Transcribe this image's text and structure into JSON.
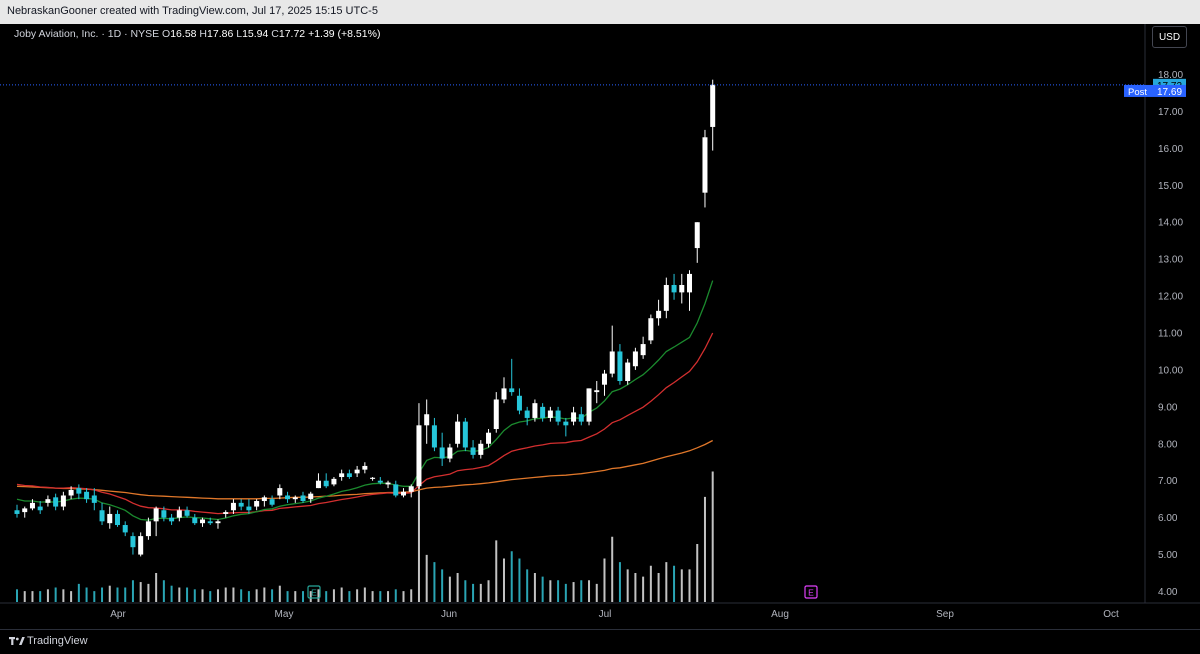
{
  "header": {
    "attribution": "NebraskanGooner created with TradingView.com, Jul 17, 2025 15:15 UTC-5"
  },
  "legend": {
    "symbol": "Joby Aviation, Inc. · 1D · NYSE",
    "o_label": "O",
    "o": "16.58",
    "h_label": "H",
    "h": "17.86",
    "l_label": "L",
    "l": "15.94",
    "c_label": "C",
    "c": "17.72",
    "change": "+1.39 (+8.51%)"
  },
  "currency_button": "USD",
  "price_tags": {
    "last": "17.72",
    "post_label": "Post",
    "post": "17.69"
  },
  "earnings_markers": [
    {
      "label": "E",
      "date": "May 7",
      "color": "#26a69a"
    },
    {
      "label": "E",
      "date": "Aug 6",
      "color": "#e040fb"
    }
  ],
  "footer": {
    "brand": "TradingView"
  },
  "colors": {
    "up": "#ffffff",
    "down": "#26c6da",
    "ema_short": "#1b8a2e",
    "ema_mid": "#d32f2f",
    "ema_long": "#e0772a",
    "price_line": "#2962ff",
    "post_tag": "#2962ff"
  },
  "chart_data": {
    "type": "candlestick",
    "y_ticks": [
      "18.00",
      "17.00",
      "16.00",
      "15.00",
      "14.00",
      "13.00",
      "12.00",
      "11.00",
      "10.00",
      "9.00",
      "8.00",
      "7.00",
      "6.00",
      "5.00",
      "4.00"
    ],
    "x_ticks": [
      "Apr",
      "May",
      "Jun",
      "Jul",
      "Aug",
      "Sep",
      "Oct"
    ],
    "ylim": [
      3.7,
      18.3
    ],
    "scale": "linear",
    "candles": [
      {
        "d": "Mar 24",
        "o": 6.2,
        "h": 6.35,
        "l": 6.0,
        "c": 6.1,
        "v": 0.35
      },
      {
        "d": "Mar 25",
        "o": 6.15,
        "h": 6.3,
        "l": 6.0,
        "c": 6.25,
        "v": 0.3
      },
      {
        "d": "Mar 26",
        "o": 6.25,
        "h": 6.5,
        "l": 6.2,
        "c": 6.4,
        "v": 0.3
      },
      {
        "d": "Mar 27",
        "o": 6.3,
        "h": 6.45,
        "l": 6.1,
        "c": 6.2,
        "v": 0.3
      },
      {
        "d": "Mar 28",
        "o": 6.4,
        "h": 6.6,
        "l": 6.3,
        "c": 6.5,
        "v": 0.35
      },
      {
        "d": "Mar 31",
        "o": 6.55,
        "h": 6.65,
        "l": 6.2,
        "c": 6.3,
        "v": 0.4
      },
      {
        "d": "Apr 1",
        "o": 6.3,
        "h": 6.7,
        "l": 6.2,
        "c": 6.6,
        "v": 0.35
      },
      {
        "d": "Apr 2",
        "o": 6.6,
        "h": 6.85,
        "l": 6.5,
        "c": 6.75,
        "v": 0.3
      },
      {
        "d": "Apr 3",
        "o": 6.8,
        "h": 6.9,
        "l": 6.5,
        "c": 6.65,
        "v": 0.5
      },
      {
        "d": "Apr 4",
        "o": 6.7,
        "h": 6.8,
        "l": 6.4,
        "c": 6.5,
        "v": 0.4
      },
      {
        "d": "Apr 7",
        "o": 6.6,
        "h": 6.8,
        "l": 6.2,
        "c": 6.4,
        "v": 0.3
      },
      {
        "d": "Apr 8",
        "o": 6.2,
        "h": 6.4,
        "l": 5.8,
        "c": 5.9,
        "v": 0.4
      },
      {
        "d": "Apr 9",
        "o": 5.85,
        "h": 6.3,
        "l": 5.7,
        "c": 6.1,
        "v": 0.45
      },
      {
        "d": "Apr 10",
        "o": 6.1,
        "h": 6.2,
        "l": 5.75,
        "c": 5.8,
        "v": 0.4
      },
      {
        "d": "Apr 11",
        "o": 5.8,
        "h": 5.9,
        "l": 5.5,
        "c": 5.6,
        "v": 0.4
      },
      {
        "d": "Apr 14",
        "o": 5.5,
        "h": 5.6,
        "l": 5.0,
        "c": 5.2,
        "v": 0.6
      },
      {
        "d": "Apr 15",
        "o": 5.0,
        "h": 5.6,
        "l": 4.95,
        "c": 5.5,
        "v": 0.55
      },
      {
        "d": "Apr 16",
        "o": 5.5,
        "h": 6.0,
        "l": 5.4,
        "c": 5.9,
        "v": 0.5
      },
      {
        "d": "Apr 17",
        "o": 5.9,
        "h": 6.3,
        "l": 5.5,
        "c": 6.25,
        "v": 0.8
      },
      {
        "d": "Apr 21",
        "o": 6.2,
        "h": 6.3,
        "l": 5.9,
        "c": 6.0,
        "v": 0.6
      },
      {
        "d": "Apr 22",
        "o": 6.0,
        "h": 6.1,
        "l": 5.8,
        "c": 5.9,
        "v": 0.45
      },
      {
        "d": "Apr 23",
        "o": 6.0,
        "h": 6.3,
        "l": 5.9,
        "c": 6.2,
        "v": 0.4
      },
      {
        "d": "Apr 24",
        "o": 6.2,
        "h": 6.3,
        "l": 6.0,
        "c": 6.05,
        "v": 0.4
      },
      {
        "d": "Apr 25",
        "o": 6.0,
        "h": 6.1,
        "l": 5.8,
        "c": 5.85,
        "v": 0.35
      },
      {
        "d": "Apr 28",
        "o": 5.85,
        "h": 6.0,
        "l": 5.75,
        "c": 5.95,
        "v": 0.35
      },
      {
        "d": "Apr 29",
        "o": 5.9,
        "h": 6.0,
        "l": 5.8,
        "c": 5.85,
        "v": 0.3
      },
      {
        "d": "Apr 30",
        "o": 5.85,
        "h": 5.95,
        "l": 5.7,
        "c": 5.9,
        "v": 0.35
      },
      {
        "d": "May 1",
        "o": 6.1,
        "h": 6.2,
        "l": 6.0,
        "c": 6.15,
        "v": 0.4
      },
      {
        "d": "May 2",
        "o": 6.2,
        "h": 6.5,
        "l": 6.1,
        "c": 6.4,
        "v": 0.4
      },
      {
        "d": "May 5",
        "o": 6.4,
        "h": 6.5,
        "l": 6.2,
        "c": 6.3,
        "v": 0.35
      },
      {
        "d": "May 6",
        "o": 6.3,
        "h": 6.5,
        "l": 6.1,
        "c": 6.2,
        "v": 0.3
      },
      {
        "d": "May 7",
        "o": 6.3,
        "h": 6.5,
        "l": 6.2,
        "c": 6.45,
        "v": 0.35
      },
      {
        "d": "May 8",
        "o": 6.45,
        "h": 6.6,
        "l": 6.3,
        "c": 6.55,
        "v": 0.4
      },
      {
        "d": "May 9",
        "o": 6.5,
        "h": 6.6,
        "l": 6.3,
        "c": 6.35,
        "v": 0.35
      },
      {
        "d": "May 12",
        "o": 6.6,
        "h": 6.9,
        "l": 6.5,
        "c": 6.8,
        "v": 0.45
      },
      {
        "d": "May 13",
        "o": 6.6,
        "h": 6.7,
        "l": 6.4,
        "c": 6.5,
        "v": 0.3
      },
      {
        "d": "May 14",
        "o": 6.5,
        "h": 6.6,
        "l": 6.4,
        "c": 6.55,
        "v": 0.3
      },
      {
        "d": "May 15",
        "o": 6.6,
        "h": 6.7,
        "l": 6.4,
        "c": 6.45,
        "v": 0.3
      },
      {
        "d": "May 16",
        "o": 6.5,
        "h": 6.7,
        "l": 6.4,
        "c": 6.65,
        "v": 0.3
      },
      {
        "d": "May 19",
        "o": 6.8,
        "h": 7.2,
        "l": 6.8,
        "c": 7.0,
        "v": 0.35
      },
      {
        "d": "May 20",
        "o": 7.0,
        "h": 7.2,
        "l": 6.8,
        "c": 6.85,
        "v": 0.3
      },
      {
        "d": "May 21",
        "o": 6.9,
        "h": 7.1,
        "l": 6.85,
        "c": 7.05,
        "v": 0.35
      },
      {
        "d": "May 22",
        "o": 7.1,
        "h": 7.3,
        "l": 7.0,
        "c": 7.2,
        "v": 0.4
      },
      {
        "d": "May 23",
        "o": 7.2,
        "h": 7.3,
        "l": 7.05,
        "c": 7.1,
        "v": 0.3
      },
      {
        "d": "May 27",
        "o": 7.2,
        "h": 7.4,
        "l": 7.1,
        "c": 7.3,
        "v": 0.35
      },
      {
        "d": "May 28",
        "o": 7.3,
        "h": 7.5,
        "l": 7.2,
        "c": 7.4,
        "v": 0.4
      },
      {
        "d": "May 29",
        "o": 7.05,
        "h": 7.1,
        "l": 7.0,
        "c": 7.08,
        "v": 0.3
      },
      {
        "d": "May 30",
        "o": 7.0,
        "h": 7.1,
        "l": 6.9,
        "c": 6.95,
        "v": 0.3
      },
      {
        "d": "Jun 2",
        "o": 6.9,
        "h": 7.0,
        "l": 6.8,
        "c": 6.95,
        "v": 0.3
      },
      {
        "d": "Jun 3",
        "o": 6.9,
        "h": 7.0,
        "l": 6.55,
        "c": 6.6,
        "v": 0.35
      },
      {
        "d": "Jun 4",
        "o": 6.6,
        "h": 6.8,
        "l": 6.55,
        "c": 6.7,
        "v": 0.3
      },
      {
        "d": "Jun 5",
        "o": 6.7,
        "h": 6.9,
        "l": 6.55,
        "c": 6.85,
        "v": 0.35
      },
      {
        "d": "Jun 6",
        "o": 6.85,
        "h": 9.1,
        "l": 6.8,
        "c": 8.5,
        "v": 3.2
      },
      {
        "d": "Jun 9",
        "o": 8.5,
        "h": 9.2,
        "l": 8.0,
        "c": 8.8,
        "v": 1.3
      },
      {
        "d": "Jun 10",
        "o": 8.5,
        "h": 8.7,
        "l": 7.8,
        "c": 7.9,
        "v": 1.1
      },
      {
        "d": "Jun 11",
        "o": 7.9,
        "h": 8.3,
        "l": 7.4,
        "c": 7.6,
        "v": 0.9
      },
      {
        "d": "Jun 12",
        "o": 7.6,
        "h": 8.0,
        "l": 7.5,
        "c": 7.9,
        "v": 0.7
      },
      {
        "d": "Jun 13",
        "o": 8.0,
        "h": 8.8,
        "l": 7.9,
        "c": 8.6,
        "v": 0.8
      },
      {
        "d": "Jun 16",
        "o": 8.6,
        "h": 8.7,
        "l": 7.8,
        "c": 7.9,
        "v": 0.6
      },
      {
        "d": "Jun 17",
        "o": 7.9,
        "h": 8.1,
        "l": 7.6,
        "c": 7.7,
        "v": 0.5
      },
      {
        "d": "Jun 18",
        "o": 7.7,
        "h": 8.1,
        "l": 7.6,
        "c": 8.0,
        "v": 0.5
      },
      {
        "d": "Jun 19",
        "o": 8.0,
        "h": 8.4,
        "l": 7.9,
        "c": 8.3,
        "v": 0.6
      },
      {
        "d": "Jun 20",
        "o": 8.4,
        "h": 9.4,
        "l": 8.3,
        "c": 9.2,
        "v": 1.7
      },
      {
        "d": "Jun 23",
        "o": 9.2,
        "h": 9.8,
        "l": 9.1,
        "c": 9.5,
        "v": 1.2
      },
      {
        "d": "Jun 24",
        "o": 9.5,
        "h": 10.3,
        "l": 9.3,
        "c": 9.4,
        "v": 1.4
      },
      {
        "d": "Jun 25",
        "o": 9.3,
        "h": 9.5,
        "l": 8.8,
        "c": 8.9,
        "v": 1.2
      },
      {
        "d": "Jun 26",
        "o": 8.9,
        "h": 9.0,
        "l": 8.5,
        "c": 8.7,
        "v": 0.9
      },
      {
        "d": "Jun 27",
        "o": 8.7,
        "h": 9.2,
        "l": 8.6,
        "c": 9.1,
        "v": 0.8
      },
      {
        "d": "Jun 30",
        "o": 9.0,
        "h": 9.1,
        "l": 8.6,
        "c": 8.7,
        "v": 0.7
      },
      {
        "d": "Jul 1",
        "o": 8.7,
        "h": 9.0,
        "l": 8.6,
        "c": 8.9,
        "v": 0.6
      },
      {
        "d": "Jul 2",
        "o": 8.9,
        "h": 9.0,
        "l": 8.5,
        "c": 8.6,
        "v": 0.6
      },
      {
        "d": "Jul 3",
        "o": 8.6,
        "h": 8.7,
        "l": 8.2,
        "c": 8.5,
        "v": 0.5
      },
      {
        "d": "Jul 7",
        "o": 8.6,
        "h": 9.0,
        "l": 8.5,
        "c": 8.85,
        "v": 0.55
      },
      {
        "d": "Jul 8",
        "o": 8.8,
        "h": 9.0,
        "l": 8.5,
        "c": 8.6,
        "v": 0.6
      },
      {
        "d": "Jul 9",
        "o": 8.6,
        "h": 9.5,
        "l": 8.5,
        "c": 9.5,
        "v": 0.6
      },
      {
        "d": "Jul 10",
        "o": 9.4,
        "h": 9.7,
        "l": 9.1,
        "c": 9.45,
        "v": 0.5
      },
      {
        "d": "Jul 11",
        "o": 9.6,
        "h": 10.0,
        "l": 9.3,
        "c": 9.9,
        "v": 1.2
      },
      {
        "d": "Jul 14",
        "o": 9.9,
        "h": 11.2,
        "l": 9.8,
        "c": 10.5,
        "v": 1.8
      },
      {
        "d": "Jul 15",
        "o": 10.5,
        "h": 10.7,
        "l": 9.6,
        "c": 9.7,
        "v": 1.1
      },
      {
        "d": "Jul 16",
        "o": 9.7,
        "h": 10.3,
        "l": 9.6,
        "c": 10.2,
        "v": 0.9
      },
      {
        "d": "Jul 17",
        "o": 10.1,
        "h": 10.6,
        "l": 10.0,
        "c": 10.5,
        "v": 0.8
      },
      {
        "d": "Jul 18",
        "o": 10.4,
        "h": 10.9,
        "l": 10.3,
        "c": 10.7,
        "v": 0.7
      },
      {
        "d": "Jul 21",
        "o": 10.8,
        "h": 11.5,
        "l": 10.7,
        "c": 11.4,
        "v": 1.0
      },
      {
        "d": "Jul 22",
        "o": 11.4,
        "h": 11.9,
        "l": 11.2,
        "c": 11.6,
        "v": 0.8
      },
      {
        "d": "Jul 23",
        "o": 11.6,
        "h": 12.5,
        "l": 11.4,
        "c": 12.3,
        "v": 1.1
      },
      {
        "d": "Jul 24",
        "o": 12.3,
        "h": 12.6,
        "l": 11.9,
        "c": 12.1,
        "v": 1.0
      },
      {
        "d": "Jul 25",
        "o": 12.1,
        "h": 12.6,
        "l": 11.8,
        "c": 12.3,
        "v": 0.9
      },
      {
        "d": "Jul 28",
        "o": 12.1,
        "h": 12.7,
        "l": 11.6,
        "c": 12.6,
        "v": 0.9
      },
      {
        "d": "Jul 29",
        "o": 13.3,
        "h": 14.0,
        "l": 12.9,
        "c": 14.0,
        "v": 1.6
      },
      {
        "d": "Jul 30",
        "o": 14.8,
        "h": 16.5,
        "l": 14.4,
        "c": 16.3,
        "v": 2.9
      },
      {
        "d": "Jul 31",
        "o": 16.58,
        "h": 17.86,
        "l": 15.94,
        "c": 17.72,
        "v": 3.6
      }
    ],
    "volume_scale_max": 4.0,
    "ema_short": [
      6.5,
      6.45,
      6.45,
      6.42,
      6.43,
      6.42,
      6.45,
      6.5,
      6.53,
      6.52,
      6.5,
      6.4,
      6.35,
      6.28,
      6.2,
      6.05,
      5.95,
      5.93,
      5.98,
      5.98,
      5.97,
      6.0,
      6.02,
      6.0,
      5.99,
      5.97,
      5.95,
      5.99,
      6.05,
      6.09,
      6.11,
      6.16,
      6.22,
      6.24,
      6.31,
      6.35,
      6.38,
      6.41,
      6.45,
      6.53,
      6.58,
      6.64,
      6.71,
      6.75,
      6.81,
      6.88,
      6.92,
      6.93,
      6.93,
      6.88,
      6.85,
      6.85,
      7.22,
      7.55,
      7.63,
      7.62,
      7.65,
      7.8,
      7.82,
      7.79,
      7.82,
      7.9,
      8.12,
      8.36,
      8.52,
      8.59,
      8.62,
      8.68,
      8.69,
      8.73,
      8.71,
      8.67,
      8.7,
      8.69,
      8.85,
      8.97,
      9.16,
      9.41,
      9.48,
      9.6,
      9.74,
      9.87,
      10.06,
      10.27,
      10.5,
      10.62,
      10.75,
      10.88,
      11.27,
      11.8,
      12.42
    ],
    "ema_mid": [
      6.9,
      6.87,
      6.86,
      6.83,
      6.82,
      6.8,
      6.8,
      6.81,
      6.8,
      6.78,
      6.75,
      6.69,
      6.64,
      6.57,
      6.5,
      6.39,
      6.31,
      6.27,
      6.26,
      6.24,
      6.21,
      6.21,
      6.2,
      6.17,
      6.15,
      6.13,
      6.11,
      6.12,
      6.13,
      6.14,
      6.14,
      6.16,
      6.19,
      6.2,
      6.25,
      6.27,
      6.29,
      6.31,
      6.33,
      6.38,
      6.41,
      6.45,
      6.49,
      6.52,
      6.56,
      6.6,
      6.63,
      6.65,
      6.67,
      6.66,
      6.66,
      6.67,
      6.87,
      7.04,
      7.11,
      7.14,
      7.18,
      7.27,
      7.3,
      7.32,
      7.36,
      7.41,
      7.54,
      7.68,
      7.8,
      7.85,
      7.89,
      7.94,
      7.97,
      8.01,
      8.02,
      8.03,
      8.07,
      8.09,
      8.18,
      8.27,
      8.4,
      8.57,
      8.65,
      8.77,
      8.88,
      8.99,
      9.15,
      9.33,
      9.52,
      9.66,
      9.81,
      9.96,
      10.22,
      10.58,
      11.0
    ],
    "ema_long": [
      6.85,
      6.84,
      6.83,
      6.82,
      6.81,
      6.8,
      6.79,
      6.79,
      6.78,
      6.77,
      6.76,
      6.74,
      6.72,
      6.7,
      6.68,
      6.65,
      6.62,
      6.6,
      6.59,
      6.58,
      6.57,
      6.56,
      6.55,
      6.54,
      6.53,
      6.52,
      6.51,
      6.51,
      6.51,
      6.51,
      6.51,
      6.51,
      6.52,
      6.52,
      6.53,
      6.54,
      6.55,
      6.55,
      6.56,
      6.57,
      6.58,
      6.59,
      6.61,
      6.62,
      6.63,
      6.65,
      6.66,
      6.67,
      6.68,
      6.68,
      6.69,
      6.7,
      6.75,
      6.8,
      6.82,
      6.83,
      6.85,
      6.87,
      6.89,
      6.9,
      6.92,
      6.94,
      6.97,
      7.0,
      7.03,
      7.05,
      7.07,
      7.09,
      7.11,
      7.13,
      7.14,
      7.15,
      7.17,
      7.19,
      7.22,
      7.25,
      7.28,
      7.33,
      7.35,
      7.39,
      7.43,
      7.47,
      7.53,
      7.59,
      7.65,
      7.7,
      7.75,
      7.81,
      7.89,
      7.98,
      8.09
    ]
  }
}
